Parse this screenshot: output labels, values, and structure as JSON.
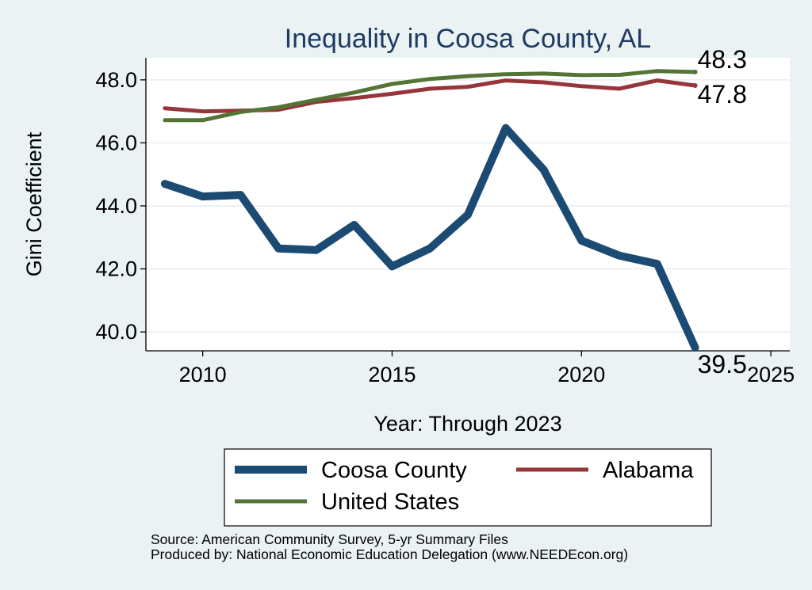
{
  "chart_data": {
    "type": "line",
    "title": "Inequality in Coosa County, AL",
    "xlabel": "Year: Through 2023",
    "ylabel": "Gini Coefficient",
    "xlim": [
      2008.5,
      2025.5
    ],
    "ylim": [
      39.4,
      48.7
    ],
    "xticks": [
      2010,
      2015,
      2020,
      2025
    ],
    "yticks": [
      40.0,
      42.0,
      44.0,
      46.0,
      48.0
    ],
    "ytick_labels": [
      "40.0",
      "42.0",
      "44.0",
      "46.0",
      "48.0"
    ],
    "grid": true,
    "legend_position": "bottom",
    "x": [
      2009,
      2010,
      2011,
      2012,
      2013,
      2014,
      2015,
      2016,
      2017,
      2018,
      2019,
      2020,
      2021,
      2022,
      2023
    ],
    "series": [
      {
        "name": "Coosa County",
        "color": "#1b4a73",
        "values": [
          44.7,
          44.3,
          44.35,
          42.65,
          42.6,
          43.4,
          42.08,
          42.65,
          43.72,
          46.47,
          45.15,
          42.9,
          42.42,
          42.16,
          39.5
        ],
        "end_label": "39.5"
      },
      {
        "name": "Alabama",
        "color": "#96353a",
        "values": [
          47.1,
          47.0,
          47.02,
          47.05,
          47.3,
          47.42,
          47.56,
          47.72,
          47.78,
          47.98,
          47.92,
          47.8,
          47.72,
          47.98,
          47.82
        ],
        "end_label": "47.8"
      },
      {
        "name": "United States",
        "color": "#537434",
        "values": [
          46.72,
          46.72,
          46.98,
          47.13,
          47.37,
          47.6,
          47.87,
          48.03,
          48.12,
          48.18,
          48.2,
          48.15,
          48.16,
          48.28,
          48.25
        ],
        "end_label": "48.3"
      }
    ]
  },
  "source": {
    "line1": "Source: American Community Survey, 5-yr Summary Files",
    "line2": "Produced by: National Economic Education Delegation (www.NEEDEcon.org)"
  }
}
